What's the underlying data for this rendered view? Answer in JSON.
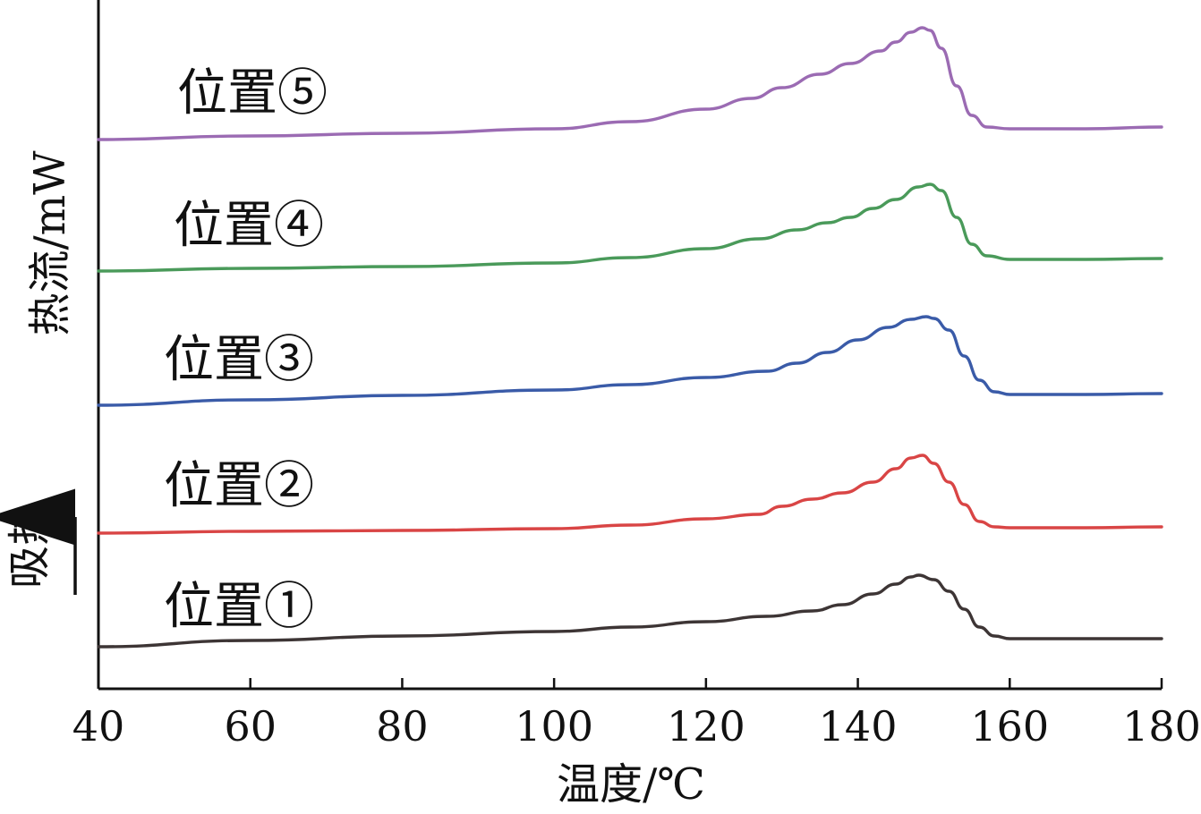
{
  "chart_data": {
    "type": "line",
    "xlabel": "温度/℃",
    "ylabel": "热流/mW",
    "endotherm_label": "吸热",
    "xlim": [
      40,
      180
    ],
    "x_ticks": [
      "40",
      "60",
      "80",
      "100",
      "120",
      "140",
      "160",
      "180"
    ],
    "grid": false,
    "series": [
      {
        "name": "位置①",
        "color": "#3d3535",
        "x": [
          40,
          60,
          80,
          100,
          110,
          120,
          128,
          134,
          138,
          142,
          145,
          147,
          148,
          150,
          152,
          154,
          156,
          158,
          160,
          170,
          180
        ],
        "y": [
          0.0,
          0.07,
          0.12,
          0.17,
          0.22,
          0.28,
          0.34,
          0.4,
          0.47,
          0.59,
          0.7,
          0.78,
          0.8,
          0.75,
          0.62,
          0.42,
          0.22,
          0.12,
          0.09,
          0.09,
          0.09
        ]
      },
      {
        "name": "位置②",
        "color": "#d94545",
        "x": [
          40,
          60,
          80,
          100,
          110,
          120,
          127,
          130,
          134,
          138,
          142,
          145,
          147,
          148.5,
          150,
          152,
          154,
          156,
          158,
          160,
          170,
          180
        ],
        "y": [
          0.0,
          0.02,
          0.03,
          0.05,
          0.09,
          0.16,
          0.21,
          0.3,
          0.38,
          0.45,
          0.57,
          0.72,
          0.84,
          0.87,
          0.78,
          0.57,
          0.32,
          0.13,
          0.07,
          0.06,
          0.06,
          0.07
        ]
      },
      {
        "name": "位置③",
        "color": "#3a5ba8",
        "x": [
          40,
          60,
          80,
          100,
          110,
          120,
          128,
          132,
          136,
          140,
          144,
          147,
          149,
          150,
          152,
          154,
          156,
          158,
          160,
          170,
          180
        ],
        "y": [
          0.0,
          0.06,
          0.11,
          0.17,
          0.23,
          0.31,
          0.38,
          0.47,
          0.59,
          0.73,
          0.87,
          0.96,
          0.99,
          0.97,
          0.84,
          0.55,
          0.28,
          0.15,
          0.12,
          0.12,
          0.13
        ]
      },
      {
        "name": "位置④",
        "color": "#4a9a5a",
        "x": [
          40,
          60,
          80,
          100,
          110,
          120,
          127,
          132,
          136,
          139,
          142,
          145,
          148,
          149.5,
          151,
          153,
          155,
          157,
          160,
          170,
          180
        ],
        "y": [
          0.0,
          0.03,
          0.05,
          0.09,
          0.15,
          0.25,
          0.36,
          0.46,
          0.54,
          0.6,
          0.7,
          0.8,
          0.94,
          0.97,
          0.9,
          0.6,
          0.3,
          0.17,
          0.13,
          0.13,
          0.14
        ]
      },
      {
        "name": "位置⑤",
        "color": "#9b6bb3",
        "x": [
          40,
          60,
          80,
          100,
          110,
          120,
          126,
          130,
          135,
          139,
          143,
          145,
          147,
          148.5,
          149.5,
          151,
          153,
          155,
          157,
          160,
          170,
          180
        ],
        "y": [
          0.0,
          0.04,
          0.07,
          0.12,
          0.2,
          0.34,
          0.46,
          0.58,
          0.73,
          0.85,
          0.99,
          1.09,
          1.2,
          1.25,
          1.22,
          1.02,
          0.6,
          0.27,
          0.14,
          0.12,
          0.12,
          0.14
        ]
      }
    ]
  }
}
